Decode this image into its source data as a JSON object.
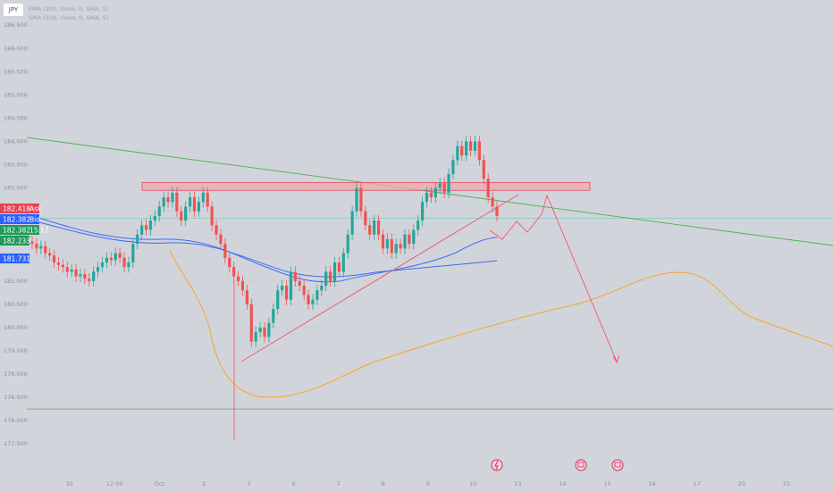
{
  "symbol": "JPY",
  "legend": [
    "EMA (200, close, 0, SMA, 5)",
    "SMA (100, close, 0, SMA, 5)"
  ],
  "colors": {
    "bg": "#d2d4db",
    "up": "#26a69a",
    "down": "#ef5350",
    "ma_blue": "#3b6ef0",
    "ma_orange": "#f5a623",
    "green_line": "#4caf50",
    "red_line": "#f0566a",
    "zone_fill": "#f4a7b0",
    "zone_stroke": "#e04a5a"
  },
  "price_tags": [
    {
      "value": "182.418",
      "label": "Ask",
      "color": "#e8424f"
    },
    {
      "value": "182.382",
      "label": "Bid",
      "color": "#2962ff"
    },
    {
      "value": "182.382",
      "label": "15:17",
      "color": "#1e9a5a"
    },
    {
      "value": "182.233",
      "label": "",
      "color": "#1e9a5a"
    },
    {
      "value": "181.731",
      "label": "",
      "color": "#2962ff"
    }
  ],
  "chart_data": {
    "type": "candlestick",
    "y_axis": {
      "range": [
        177.35,
        186.85
      ],
      "ticks": [
        "186.500",
        "186.000",
        "185.500",
        "185.000",
        "184.500",
        "184.000",
        "183.500",
        "183.000",
        "182.500",
        "182.000",
        "181.500",
        "181.000",
        "180.500",
        "180.000",
        "179.500",
        "179.000",
        "178.500",
        "178.000",
        "177.500"
      ]
    },
    "x_axis": {
      "ticks": [
        "31",
        "12:00",
        "Oct",
        "2",
        "3",
        "6",
        "7",
        "8",
        "9",
        "10",
        "13",
        "14",
        "15",
        "16",
        "17",
        "20",
        "21"
      ]
    },
    "candles_close": [
      181.8,
      181.7,
      181.75,
      181.6,
      181.55,
      181.4,
      181.35,
      181.3,
      181.2,
      181.25,
      181.1,
      181.15,
      181.05,
      181.0,
      181.2,
      181.3,
      181.4,
      181.5,
      181.45,
      181.6,
      181.5,
      181.3,
      181.4,
      181.8,
      182.0,
      182.2,
      182.1,
      182.3,
      182.4,
      182.6,
      182.8,
      182.7,
      182.9,
      182.5,
      182.3,
      182.6,
      182.8,
      182.5,
      182.7,
      182.9,
      182.6,
      182.2,
      182.0,
      181.8,
      181.5,
      181.3,
      181.1,
      181.0,
      180.8,
      180.5,
      179.7,
      179.9,
      180.0,
      179.8,
      180.1,
      180.4,
      180.8,
      180.9,
      180.6,
      181.2,
      181.0,
      180.9,
      180.7,
      180.5,
      180.6,
      180.8,
      180.9,
      181.2,
      181.0,
      181.4,
      181.2,
      181.6,
      182.0,
      182.5,
      183.0,
      182.5,
      182.2,
      182.0,
      182.3,
      182.0,
      181.7,
      181.9,
      181.6,
      181.8,
      181.7,
      182.0,
      181.8,
      182.1,
      182.3,
      182.7,
      182.9,
      182.8,
      183.0,
      183.1,
      182.9,
      183.3,
      183.6,
      183.9,
      183.7,
      184.0,
      183.8,
      184.0,
      183.6,
      183.2,
      182.8,
      182.6,
      182.4
    ],
    "resistance_zone": [
      182.95,
      183.12
    ],
    "horizontal_levels": [
      178.25,
      182.35
    ],
    "projection_path": [
      182.35,
      182.6,
      182.45,
      182.85,
      182.7,
      183.05,
      179.55
    ]
  }
}
